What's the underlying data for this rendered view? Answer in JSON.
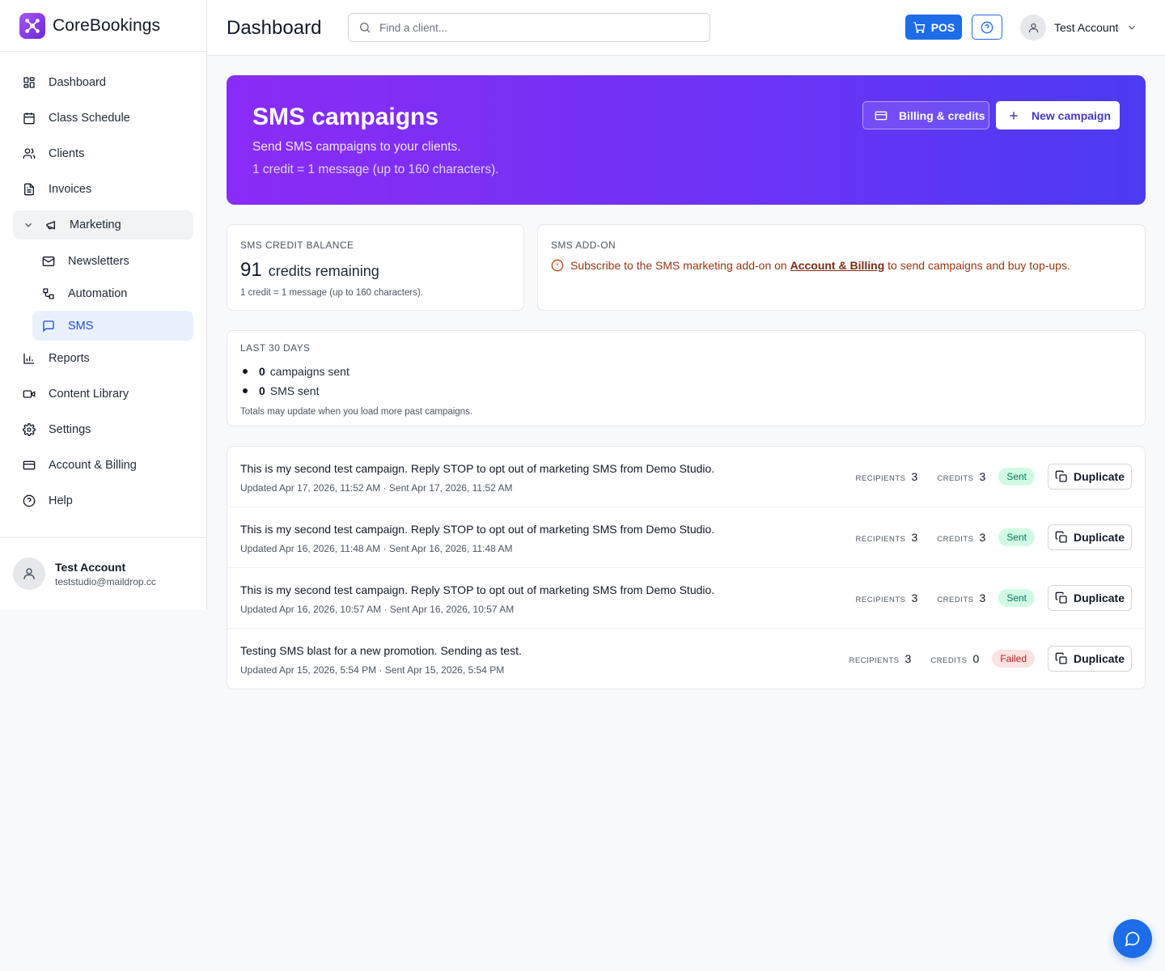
{
  "brand": {
    "name": "CoreBookings"
  },
  "sidebar": {
    "items": [
      {
        "label": "Dashboard",
        "icon": "dashboard-icon"
      },
      {
        "label": "Class Schedule",
        "icon": "calendar-icon"
      },
      {
        "label": "Clients",
        "icon": "users-icon"
      },
      {
        "label": "Invoices",
        "icon": "invoice-icon"
      }
    ],
    "marketing": {
      "label": "Marketing",
      "expanded": true,
      "children": [
        {
          "label": "Newsletters",
          "icon": "mail-icon"
        },
        {
          "label": "Automation",
          "icon": "automation-icon"
        },
        {
          "label": "SMS",
          "icon": "message-icon",
          "active": true
        }
      ]
    },
    "items_after": [
      {
        "label": "Reports",
        "icon": "bar-chart-icon"
      },
      {
        "label": "Content Library",
        "icon": "video-icon"
      },
      {
        "label": "Settings",
        "icon": "gear-icon"
      },
      {
        "label": "Account & Billing",
        "icon": "credit-card-icon"
      },
      {
        "label": "Help",
        "icon": "help-icon"
      }
    ],
    "user": {
      "name": "Test Account",
      "email": "teststudio@maildrop.cc"
    }
  },
  "header": {
    "title": "Dashboard",
    "search_placeholder": "Find a client...",
    "pos_label": "POS",
    "account_name": "Test Account"
  },
  "hero": {
    "title": "SMS campaigns",
    "subtitle": "Send SMS campaigns to your clients.",
    "note": "1 credit = 1 message (up to 160 characters).",
    "billing_label": "Billing & credits",
    "new_campaign_label": "New campaign"
  },
  "balance": {
    "heading": "SMS CREDIT BALANCE",
    "credits": "91",
    "credits_label": "credits remaining",
    "note": "1 credit = 1 message (up to 160 characters)."
  },
  "addon": {
    "heading": "SMS ADD-ON",
    "message_before": "Subscribe to the SMS marketing add-on on",
    "link_text": "Account & Billing",
    "message_after": "to send campaigns and buy top-ups."
  },
  "stats": {
    "heading": "LAST 30 DAYS",
    "campaigns_sent": "0",
    "campaigns_label": "campaigns sent",
    "sms_sent": "0",
    "sms_label": "SMS sent",
    "note": "Totals may update when you load more past campaigns."
  },
  "campaign_labels": {
    "recipients": "RECIPIENTS",
    "credits": "CREDITS",
    "duplicate": "Duplicate"
  },
  "campaigns": [
    {
      "title": "This is my second test campaign. Reply STOP to opt out of marketing SMS from Demo Studio.",
      "meta": "Updated Apr 17, 2026, 11:52 AM · Sent Apr 17, 2026, 11:52 AM",
      "recipients": "3",
      "credits": "3",
      "status": "Sent"
    },
    {
      "title": "This is my second test campaign. Reply STOP to opt out of marketing SMS from Demo Studio.",
      "meta": "Updated Apr 16, 2026, 11:48 AM · Sent Apr 16, 2026, 11:48 AM",
      "recipients": "3",
      "credits": "3",
      "status": "Sent"
    },
    {
      "title": "This is my second test campaign. Reply STOP to opt out of marketing SMS from Demo Studio.",
      "meta": "Updated Apr 16, 2026, 10:57 AM · Sent Apr 16, 2026, 10:57 AM",
      "recipients": "3",
      "credits": "3",
      "status": "Sent"
    },
    {
      "title": "Testing SMS blast for a new promotion. Sending as test.",
      "meta": "Updated Apr 15, 2026, 5:54 PM · Sent Apr 15, 2026, 5:54 PM",
      "recipients": "3",
      "credits": "0",
      "status": "Failed"
    }
  ],
  "colors": {
    "accent": "#1d6ce8",
    "hero_start": "#8a2cf5",
    "hero_end": "#4b3bf0",
    "sent": "#047857",
    "failed": "#b91c1c"
  }
}
